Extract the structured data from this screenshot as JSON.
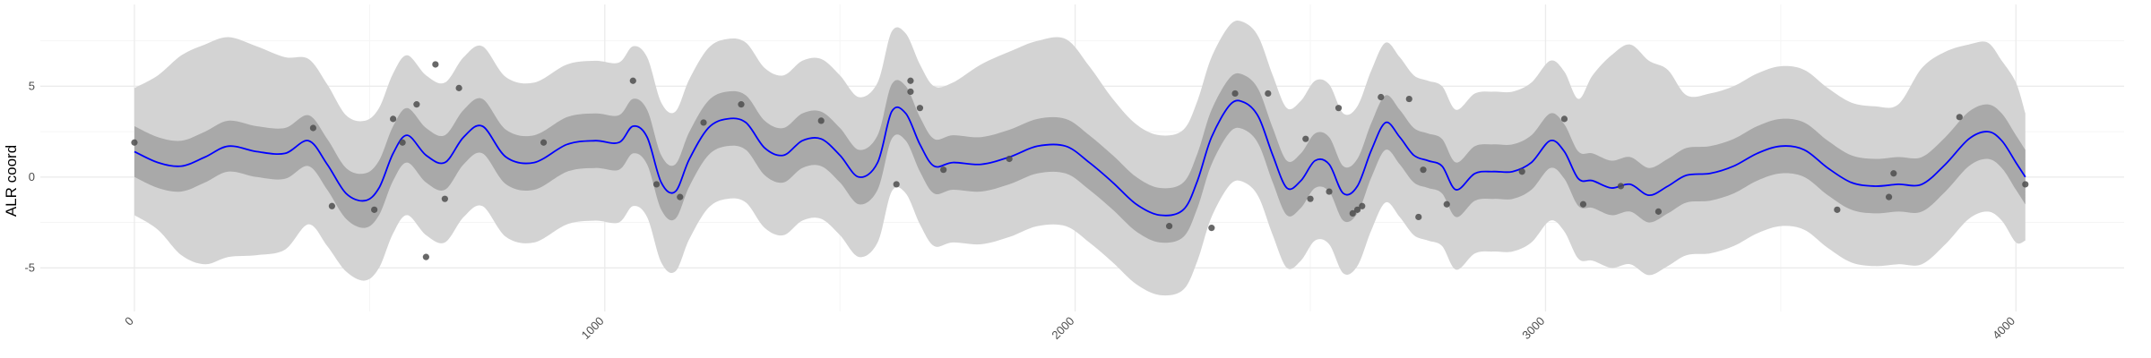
{
  "chart_data": {
    "type": "line",
    "title": "",
    "xlabel": "",
    "ylabel": "ALR coord",
    "xlim": [
      -200,
      4230
    ],
    "ylim": [
      -7.4,
      9.5
    ],
    "x_ticks": [
      0,
      1000,
      2000,
      3000,
      4000
    ],
    "x_tick_labels": [
      "0",
      "1000",
      "2000",
      "3000",
      "4000"
    ],
    "y_ticks": [
      -5,
      0,
      5
    ],
    "y_tick_labels": [
      "-5",
      "0",
      "5"
    ],
    "grid": true,
    "legend": "none",
    "colors": {
      "line": "#0000ff",
      "inner_band": "#a9a9a9",
      "outer_band": "#d3d3d3",
      "points": "#4d4d4d",
      "grid_major": "#ebebeb",
      "grid_minor": "#f5f5f5"
    },
    "mean_curve": {
      "x": [
        0,
        50,
        100,
        150,
        200,
        260,
        320,
        370,
        410,
        450,
        490,
        520,
        550,
        580,
        620,
        660,
        700,
        740,
        790,
        850,
        920,
        980,
        1030,
        1060,
        1090,
        1120,
        1150,
        1180,
        1220,
        1260,
        1300,
        1340,
        1380,
        1420,
        1460,
        1500,
        1540,
        1580,
        1610,
        1640,
        1670,
        1700,
        1740,
        1800,
        1860,
        1920,
        1980,
        2030,
        2080,
        2130,
        2180,
        2230,
        2260,
        2290,
        2330,
        2360,
        2390,
        2420,
        2450,
        2480,
        2510,
        2540,
        2570,
        2600,
        2630,
        2660,
        2690,
        2720,
        2750,
        2780,
        2810,
        2850,
        2890,
        2930,
        2970,
        3010,
        3040,
        3070,
        3100,
        3140,
        3180,
        3220,
        3260,
        3300,
        3350,
        3400,
        3450,
        3500,
        3550,
        3600,
        3650,
        3700,
        3750,
        3800,
        3850,
        3900,
        3940,
        3970,
        4000,
        4020
      ],
      "y": [
        1.4,
        0.8,
        0.6,
        1.1,
        1.7,
        1.4,
        1.3,
        2.0,
        0.7,
        -0.9,
        -1.3,
        -0.6,
        1.3,
        2.3,
        1.2,
        0.8,
        2.2,
        2.8,
        1.1,
        0.8,
        1.8,
        2.0,
        1.9,
        2.8,
        2.2,
        -0.3,
        -0.8,
        1.0,
        2.7,
        3.2,
        3.0,
        1.6,
        1.2,
        2.0,
        2.1,
        1.2,
        0.0,
        0.8,
        3.6,
        3.5,
        1.8,
        0.6,
        0.8,
        0.7,
        1.1,
        1.7,
        1.7,
        0.8,
        -0.3,
        -1.5,
        -2.1,
        -1.8,
        -0.2,
        2.2,
        4.0,
        4.1,
        3.3,
        1.2,
        -0.6,
        -0.2,
        0.9,
        0.7,
        -0.9,
        -0.5,
        1.5,
        3.0,
        2.2,
        1.2,
        0.9,
        0.6,
        -0.7,
        0.2,
        0.3,
        0.3,
        0.8,
        2.0,
        1.4,
        -0.1,
        -0.2,
        -0.6,
        -0.4,
        -1.0,
        -0.5,
        0.1,
        0.2,
        0.6,
        1.3,
        1.7,
        1.5,
        0.5,
        -0.3,
        -0.5,
        -0.4,
        -0.4,
        0.7,
        2.1,
        2.5,
        2.0,
        0.8,
        0.0
      ]
    },
    "inner_band": {
      "x": [
        0,
        50,
        100,
        150,
        200,
        260,
        320,
        370,
        410,
        450,
        490,
        520,
        550,
        580,
        620,
        660,
        700,
        740,
        790,
        850,
        920,
        980,
        1030,
        1060,
        1090,
        1120,
        1150,
        1180,
        1220,
        1260,
        1300,
        1340,
        1380,
        1420,
        1460,
        1500,
        1540,
        1580,
        1610,
        1640,
        1670,
        1700,
        1740,
        1800,
        1860,
        1920,
        1980,
        2030,
        2080,
        2130,
        2180,
        2230,
        2260,
        2290,
        2330,
        2360,
        2390,
        2420,
        2450,
        2480,
        2510,
        2540,
        2570,
        2600,
        2630,
        2660,
        2690,
        2720,
        2750,
        2780,
        2810,
        2850,
        2890,
        2930,
        2970,
        3010,
        3040,
        3070,
        3100,
        3140,
        3180,
        3220,
        3260,
        3300,
        3350,
        3400,
        3450,
        3500,
        3550,
        3600,
        3650,
        3700,
        3750,
        3800,
        3850,
        3900,
        3940,
        3970,
        4000,
        4020
      ],
      "lower": [
        0.0,
        -0.6,
        -0.8,
        -0.3,
        0.3,
        0.0,
        -0.1,
        0.6,
        -0.7,
        -2.3,
        -2.8,
        -2.1,
        -0.2,
        0.8,
        -0.3,
        -0.7,
        0.7,
        1.3,
        -0.4,
        -0.7,
        0.3,
        0.5,
        0.4,
        1.3,
        0.7,
        -1.8,
        -2.3,
        -0.5,
        1.2,
        1.7,
        1.5,
        0.1,
        -0.3,
        0.5,
        0.6,
        -0.3,
        -1.5,
        -0.7,
        2.1,
        2.0,
        0.3,
        -0.9,
        -0.7,
        -0.8,
        -0.4,
        0.2,
        0.2,
        -0.7,
        -1.8,
        -3.0,
        -3.6,
        -3.3,
        -1.7,
        0.7,
        2.5,
        2.6,
        1.8,
        -0.3,
        -2.1,
        -1.7,
        -0.6,
        -0.8,
        -2.4,
        -2.0,
        0.0,
        1.5,
        0.7,
        -0.3,
        -0.6,
        -0.9,
        -2.2,
        -1.3,
        -1.2,
        -1.2,
        -0.7,
        0.5,
        -0.1,
        -1.6,
        -1.7,
        -2.1,
        -1.9,
        -2.5,
        -2.0,
        -1.4,
        -1.3,
        -0.9,
        -0.2,
        0.2,
        0.0,
        -1.0,
        -1.8,
        -2.0,
        -1.9,
        -1.9,
        -0.8,
        0.6,
        1.0,
        0.5,
        -0.7,
        -1.5
      ],
      "upper": [
        2.8,
        2.2,
        2.0,
        2.5,
        3.1,
        2.8,
        2.7,
        3.4,
        2.1,
        0.5,
        0.2,
        0.9,
        2.8,
        3.8,
        2.7,
        2.3,
        3.7,
        4.3,
        2.6,
        2.3,
        3.3,
        3.5,
        3.4,
        4.3,
        3.7,
        1.2,
        0.7,
        2.5,
        4.2,
        4.7,
        4.5,
        3.1,
        2.7,
        3.5,
        3.6,
        2.7,
        1.5,
        2.3,
        5.1,
        5.0,
        3.3,
        2.1,
        2.3,
        2.2,
        2.6,
        3.2,
        3.2,
        2.3,
        1.2,
        0.0,
        -0.6,
        -0.3,
        1.3,
        3.7,
        5.5,
        5.6,
        4.8,
        2.7,
        0.9,
        1.3,
        2.4,
        2.2,
        0.6,
        1.0,
        3.0,
        4.5,
        3.7,
        2.7,
        2.4,
        2.1,
        0.8,
        1.7,
        1.8,
        1.8,
        2.3,
        3.5,
        2.9,
        1.4,
        1.3,
        0.9,
        1.1,
        0.5,
        1.0,
        1.6,
        1.7,
        2.1,
        2.8,
        3.2,
        3.0,
        2.0,
        1.2,
        1.0,
        1.1,
        1.1,
        2.2,
        3.6,
        4.0,
        3.5,
        2.3,
        1.5
      ]
    },
    "outer_band": {
      "x": [
        0,
        50,
        100,
        150,
        200,
        260,
        320,
        370,
        410,
        450,
        490,
        520,
        550,
        580,
        620,
        660,
        700,
        740,
        790,
        850,
        920,
        980,
        1030,
        1060,
        1090,
        1120,
        1150,
        1180,
        1220,
        1260,
        1300,
        1340,
        1380,
        1420,
        1460,
        1500,
        1540,
        1580,
        1610,
        1640,
        1670,
        1700,
        1740,
        1800,
        1860,
        1920,
        1980,
        2030,
        2080,
        2130,
        2180,
        2230,
        2260,
        2290,
        2330,
        2360,
        2390,
        2420,
        2450,
        2480,
        2510,
        2540,
        2570,
        2600,
        2630,
        2660,
        2690,
        2720,
        2750,
        2780,
        2810,
        2850,
        2890,
        2930,
        2970,
        3010,
        3040,
        3070,
        3100,
        3140,
        3180,
        3220,
        3260,
        3300,
        3350,
        3400,
        3450,
        3500,
        3550,
        3600,
        3650,
        3700,
        3750,
        3800,
        3850,
        3900,
        3940,
        3970,
        4000,
        4020
      ],
      "lower": [
        -2.1,
        -2.9,
        -4.3,
        -4.8,
        -4.4,
        -4.3,
        -4.0,
        -2.6,
        -3.8,
        -5.2,
        -5.7,
        -5.0,
        -3.1,
        -2.1,
        -3.2,
        -3.6,
        -2.2,
        -1.6,
        -3.3,
        -3.6,
        -2.6,
        -2.4,
        -2.5,
        -1.6,
        -2.2,
        -4.7,
        -5.2,
        -3.4,
        -1.7,
        -1.2,
        -1.4,
        -2.8,
        -3.2,
        -2.4,
        -2.3,
        -3.2,
        -4.4,
        -3.6,
        -0.8,
        -0.9,
        -2.6,
        -3.8,
        -3.6,
        -3.7,
        -3.3,
        -2.7,
        -2.7,
        -3.6,
        -4.7,
        -5.9,
        -6.5,
        -6.2,
        -4.6,
        -2.2,
        -0.4,
        -0.3,
        -1.1,
        -3.2,
        -5.0,
        -4.6,
        -3.5,
        -3.7,
        -5.3,
        -4.9,
        -2.9,
        -1.4,
        -2.2,
        -3.2,
        -3.5,
        -3.8,
        -5.1,
        -4.2,
        -4.1,
        -4.1,
        -3.6,
        -2.4,
        -3.0,
        -4.5,
        -4.6,
        -5.0,
        -4.8,
        -5.4,
        -4.9,
        -4.3,
        -4.2,
        -3.8,
        -3.1,
        -2.7,
        -2.9,
        -3.9,
        -4.7,
        -4.9,
        -4.8,
        -4.8,
        -3.7,
        -2.3,
        -1.9,
        -2.4,
        -3.6,
        -3.5
      ],
      "upper": [
        4.9,
        5.6,
        6.7,
        7.3,
        7.7,
        7.2,
        6.6,
        6.5,
        5.1,
        3.4,
        3.1,
        3.8,
        5.7,
        6.7,
        5.6,
        5.2,
        6.6,
        7.2,
        5.5,
        5.2,
        6.2,
        6.4,
        6.3,
        7.2,
        6.6,
        4.1,
        3.6,
        5.4,
        7.1,
        7.6,
        7.4,
        6.0,
        5.6,
        6.4,
        6.5,
        5.6,
        4.4,
        5.2,
        8.0,
        7.9,
        6.2,
        5.0,
        5.2,
        6.2,
        6.9,
        7.5,
        7.6,
        6.1,
        4.3,
        2.9,
        2.3,
        2.6,
        4.2,
        6.6,
        8.4,
        8.5,
        7.7,
        5.6,
        3.8,
        4.2,
        5.3,
        5.1,
        3.5,
        3.9,
        5.9,
        7.4,
        6.6,
        5.6,
        5.3,
        5.0,
        3.7,
        4.6,
        4.7,
        4.7,
        5.2,
        6.4,
        5.8,
        4.3,
        5.6,
        6.7,
        7.3,
        6.4,
        5.9,
        4.5,
        4.6,
        5.0,
        5.7,
        6.1,
        5.9,
        4.9,
        4.1,
        3.9,
        4.0,
        6.0,
        6.9,
        7.3,
        7.4,
        6.4,
        5.2,
        3.5
      ]
    },
    "points": {
      "x": [
        0,
        380,
        420,
        510,
        550,
        570,
        600,
        620,
        640,
        660,
        690,
        870,
        1060,
        1110,
        1160,
        1210,
        1290,
        1460,
        1620,
        1650,
        1650,
        1670,
        1720,
        1860,
        2200,
        2290,
        2340,
        2410,
        2490,
        2500,
        2540,
        2560,
        2590,
        2600,
        2610,
        2650,
        2710,
        2730,
        2740,
        2790,
        2950,
        3040,
        3080,
        3160,
        3240,
        3620,
        3730,
        3740,
        3880,
        4020
      ],
      "y": [
        1.9,
        2.7,
        -1.6,
        -1.8,
        3.2,
        1.9,
        4.0,
        -4.4,
        6.2,
        -1.2,
        4.9,
        1.9,
        5.3,
        -0.4,
        -1.1,
        3.0,
        4.0,
        3.1,
        -0.4,
        4.7,
        5.3,
        3.8,
        0.4,
        1.0,
        -2.7,
        -2.8,
        4.6,
        4.6,
        2.1,
        -1.2,
        -0.8,
        3.8,
        -2.0,
        -1.8,
        -1.6,
        4.4,
        4.3,
        -2.2,
        0.4,
        -1.5,
        0.3,
        3.2,
        -1.5,
        -0.5,
        -1.9,
        -1.8,
        -1.1,
        0.2,
        3.3,
        -0.4
      ]
    }
  }
}
